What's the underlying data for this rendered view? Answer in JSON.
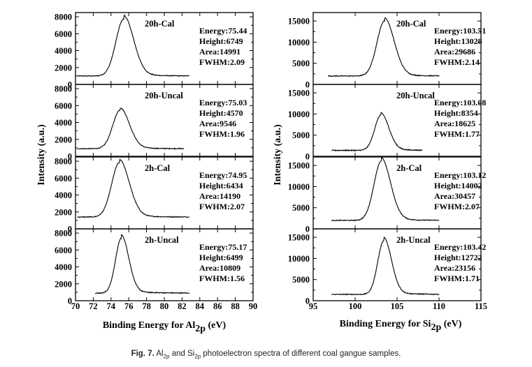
{
  "chart_data": [
    {
      "type": "line",
      "xlabel_main": "Binding Energy for Al",
      "xlabel_sub": "2p",
      "xlabel_unit": " (eV)",
      "ylabel": "Intensity (a.u.)",
      "xlim": [
        70,
        90
      ],
      "xticks": [
        70,
        72,
        74,
        76,
        78,
        80,
        82,
        84,
        86,
        88,
        90
      ],
      "ylim": [
        0,
        8500
      ],
      "yticks": [
        0,
        2000,
        4000,
        6000,
        8000
      ],
      "panels": [
        {
          "sample": "20h-Cal",
          "annotations": [
            "Energy:75.44",
            "Height:6749",
            "Area:14991",
            "FWHM:2.09"
          ],
          "series": {
            "peak": 75.44,
            "height": 6749,
            "fwhm": 2.09,
            "baseline": 1000,
            "x_start": 70.2,
            "x_end": 82.8
          }
        },
        {
          "sample": "20h-Uncal",
          "annotations": [
            "Energy:75.03",
            "Height:4570",
            "Area:9546",
            "FWHM:1.96"
          ],
          "series": {
            "peak": 75.03,
            "height": 4570,
            "fwhm": 1.96,
            "baseline": 900,
            "x_start": 70.2,
            "x_end": 82.2
          }
        },
        {
          "sample": "2h-Cal",
          "annotations": [
            "Energy:74.95",
            "Height:6434",
            "Area:14190",
            "FWHM:2.07"
          ],
          "series": {
            "peak": 74.95,
            "height": 6434,
            "fwhm": 2.07,
            "baseline": 1400,
            "x_start": 70.2,
            "x_end": 82.8
          }
        },
        {
          "sample": "2h-Uncal",
          "annotations": [
            "Energy:75.17",
            "Height:6499",
            "Area:10809",
            "FWHM:1.56"
          ],
          "series": {
            "peak": 75.17,
            "height": 6499,
            "fwhm": 1.56,
            "baseline": 900,
            "x_start": 72.2,
            "x_end": 82.8
          }
        }
      ]
    },
    {
      "type": "line",
      "xlabel_main": "Binding Energy for Si",
      "xlabel_sub": "2p",
      "xlabel_unit": " (eV)",
      "ylabel": "Intensity (a.u.)",
      "xlim": [
        95,
        115
      ],
      "xticks": [
        95,
        100,
        105,
        110,
        115
      ],
      "ylim": [
        0,
        17000
      ],
      "yticks": [
        0,
        5000,
        10000,
        15000
      ],
      "panels": [
        {
          "sample": "20h-Cal",
          "annotations": [
            "Energy:103.51",
            "Height:13028",
            "Area:29686",
            "FWHM:2.14"
          ],
          "series": {
            "peak": 103.51,
            "height": 13028,
            "fwhm": 2.14,
            "baseline": 2000,
            "x_start": 96.8,
            "x_end": 110.0
          }
        },
        {
          "sample": "20h-Uncal",
          "annotations": [
            "Energy:103.08",
            "Height:8354",
            "Area:18625",
            "FWHM:1.77"
          ],
          "series": {
            "peak": 103.08,
            "height": 8354,
            "fwhm": 1.77,
            "baseline": 1400,
            "x_start": 97.2,
            "x_end": 108.0
          }
        },
        {
          "sample": "2h-Cal",
          "annotations": [
            "Energy:103.12",
            "Height:14002",
            "Area:30457",
            "FWHM:2.07"
          ],
          "series": {
            "peak": 103.12,
            "height": 14002,
            "fwhm": 2.07,
            "baseline": 2000,
            "x_start": 97.2,
            "x_end": 110.0
          }
        },
        {
          "sample": "2h-Uncal",
          "annotations": [
            "Energy:103.42",
            "Height:12722",
            "Area:23156",
            "FWHM:1.71"
          ],
          "series": {
            "peak": 103.42,
            "height": 12722,
            "fwhm": 1.71,
            "baseline": 1500,
            "x_start": 97.2,
            "x_end": 110.0
          }
        }
      ]
    }
  ],
  "caption": {
    "prefix": "Fig. 7.",
    "part1": " Al",
    "sub1": "2p",
    "part2": " and Si",
    "sub2": "2p",
    "part3": " photoelectron spectra of different coal gangue samples."
  }
}
